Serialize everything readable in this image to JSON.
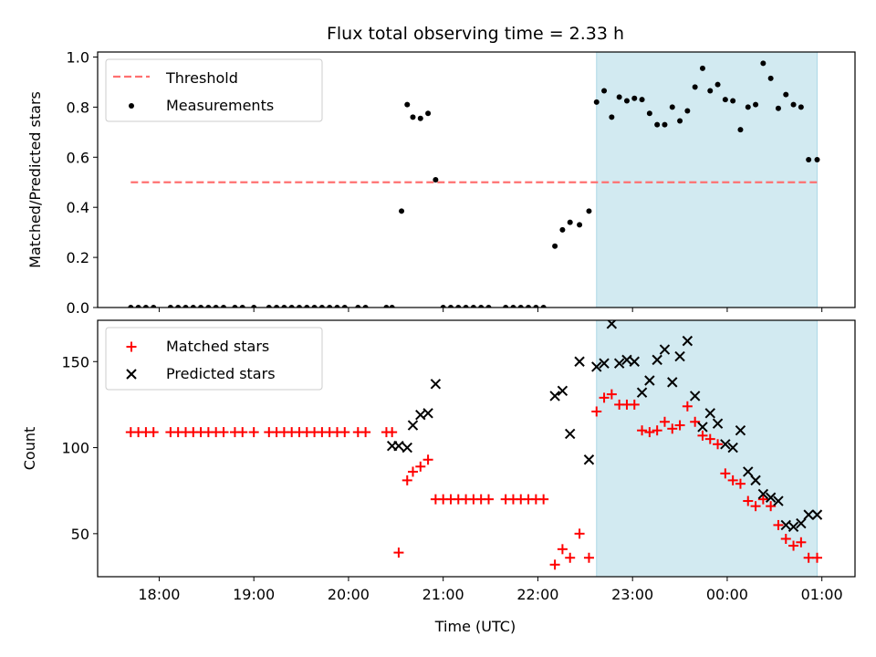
{
  "chart_data": {
    "title": "Flux total observing time = 2.33 h",
    "xlabel": "Time (UTC)",
    "x_ticks": [
      "18:00",
      "19:00",
      "20:00",
      "21:00",
      "22:00",
      "23:00",
      "00:00",
      "01:00"
    ],
    "x_range_hours": [
      17.35,
      25.35
    ],
    "shaded_interval_hours": [
      22.62,
      24.95
    ],
    "shaded_color": "#add8e6",
    "panels": [
      {
        "type": "scatter",
        "ylabel": "Matched/Predicted stars",
        "ylim": [
          0,
          1.02
        ],
        "y_ticks": [
          "0.0",
          "0.2",
          "0.4",
          "0.6",
          "0.8",
          "1.0"
        ],
        "legend_position": "upper-left",
        "series": [
          {
            "name": "Threshold",
            "kind": "dashed-line",
            "color": "#ff7070",
            "x": [
              17.7,
              24.97
            ],
            "y": [
              0.5,
              0.5
            ]
          },
          {
            "name": "Measurements",
            "kind": "points",
            "color": "#000000",
            "x": [
              17.7,
              17.78,
              17.86,
              17.94,
              18.12,
              18.2,
              18.28,
              18.36,
              18.44,
              18.52,
              18.6,
              18.68,
              18.8,
              18.88,
              19.0,
              19.16,
              19.24,
              19.32,
              19.4,
              19.48,
              19.56,
              19.64,
              19.72,
              19.8,
              19.88,
              19.96,
              20.1,
              20.18,
              20.4,
              20.46,
              20.56,
              20.62,
              20.68,
              20.76,
              20.84,
              20.92,
              21.0,
              21.08,
              21.16,
              21.24,
              21.32,
              21.4,
              21.48,
              21.66,
              21.74,
              21.82,
              21.9,
              21.98,
              22.06,
              22.18,
              22.26,
              22.34,
              22.44,
              22.54,
              22.62,
              22.7,
              22.78,
              22.86,
              22.94,
              23.02,
              23.1,
              23.18,
              23.26,
              23.34,
              23.42,
              23.5,
              23.58,
              23.66,
              23.74,
              23.82,
              23.9,
              23.98,
              24.06,
              24.14,
              24.22,
              24.3,
              24.38,
              24.46,
              24.54,
              24.62,
              24.7,
              24.78,
              24.86,
              24.95
            ],
            "y": [
              0,
              0,
              0,
              0,
              0,
              0,
              0,
              0,
              0,
              0,
              0,
              0,
              0,
              0,
              0,
              0,
              0,
              0,
              0,
              0,
              0,
              0,
              0,
              0,
              0,
              0,
              0,
              0,
              0,
              0,
              0.385,
              0.81,
              0.76,
              0.755,
              0.775,
              0.51,
              0,
              0,
              0,
              0,
              0,
              0,
              0,
              0,
              0,
              0,
              0,
              0,
              0,
              0.245,
              0.31,
              0.34,
              0.33,
              0.385,
              0.82,
              0.865,
              0.76,
              0.84,
              0.825,
              0.835,
              0.83,
              0.775,
              0.73,
              0.73,
              0.8,
              0.745,
              0.785,
              0.88,
              0.955,
              0.865,
              0.89,
              0.83,
              0.825,
              0.71,
              0.8,
              0.81,
              0.975,
              0.915,
              0.795,
              0.85,
              0.81,
              0.8,
              0.59,
              0.59
            ]
          }
        ]
      },
      {
        "type": "scatter",
        "ylabel": "Count",
        "ylim": [
          25,
          174
        ],
        "y_ticks": [
          "50",
          "100",
          "150"
        ],
        "legend_position": "upper-left",
        "series": [
          {
            "name": "Matched stars",
            "kind": "plus",
            "color": "#ff0000",
            "x": [
              17.7,
              17.78,
              17.86,
              17.94,
              18.12,
              18.2,
              18.28,
              18.36,
              18.44,
              18.52,
              18.6,
              18.68,
              18.8,
              18.88,
              19.0,
              19.16,
              19.24,
              19.32,
              19.4,
              19.48,
              19.56,
              19.64,
              19.72,
              19.8,
              19.88,
              19.96,
              20.1,
              20.18,
              20.4,
              20.46,
              20.53,
              20.62,
              20.68,
              20.76,
              20.84,
              20.92,
              21.0,
              21.08,
              21.16,
              21.24,
              21.32,
              21.4,
              21.48,
              21.66,
              21.74,
              21.82,
              21.9,
              21.98,
              22.06,
              22.18,
              22.26,
              22.34,
              22.44,
              22.54,
              22.62,
              22.7,
              22.78,
              22.86,
              22.94,
              23.02,
              23.1,
              23.18,
              23.26,
              23.34,
              23.42,
              23.5,
              23.58,
              23.66,
              23.74,
              23.82,
              23.9,
              23.98,
              24.06,
              24.14,
              24.22,
              24.3,
              24.38,
              24.46,
              24.54,
              24.62,
              24.7,
              24.78,
              24.86,
              24.95
            ],
            "y": [
              109,
              109,
              109,
              109,
              109,
              109,
              109,
              109,
              109,
              109,
              109,
              109,
              109,
              109,
              109,
              109,
              109,
              109,
              109,
              109,
              109,
              109,
              109,
              109,
              109,
              109,
              109,
              109,
              109,
              109,
              39,
              81,
              86,
              89,
              93,
              70,
              70,
              70,
              70,
              70,
              70,
              70,
              70,
              70,
              70,
              70,
              70,
              70,
              70,
              32,
              41,
              36,
              50,
              36,
              121,
              129,
              131,
              125,
              125,
              125,
              110,
              109,
              110,
              115,
              111,
              113,
              124,
              115,
              107,
              105,
              102,
              85,
              81,
              79,
              69,
              66,
              70,
              66,
              55,
              47,
              43,
              45,
              36,
              36
            ]
          },
          {
            "name": "Predicted stars",
            "kind": "x",
            "color": "#000000",
            "x": [
              20.46,
              20.53,
              20.62,
              20.68,
              20.76,
              20.84,
              20.92,
              22.18,
              22.26,
              22.34,
              22.44,
              22.54,
              22.62,
              22.7,
              22.78,
              22.86,
              22.94,
              23.02,
              23.1,
              23.18,
              23.26,
              23.34,
              23.42,
              23.5,
              23.58,
              23.66,
              23.74,
              23.82,
              23.9,
              23.98,
              24.06,
              24.14,
              24.22,
              24.3,
              24.38,
              24.46,
              24.54,
              24.62,
              24.7,
              24.78,
              24.86,
              24.95
            ],
            "y": [
              101,
              101,
              100,
              113,
              119,
              120,
              137,
              130,
              133,
              108,
              150,
              93,
              147,
              149,
              172,
              149,
              151,
              150,
              132,
              139,
              151,
              157,
              138,
              153,
              162,
              130,
              112,
              120,
              114,
              102,
              100,
              110,
              86,
              81,
              73,
              71,
              69,
              55,
              54,
              56,
              61,
              61
            ]
          }
        ]
      }
    ]
  }
}
